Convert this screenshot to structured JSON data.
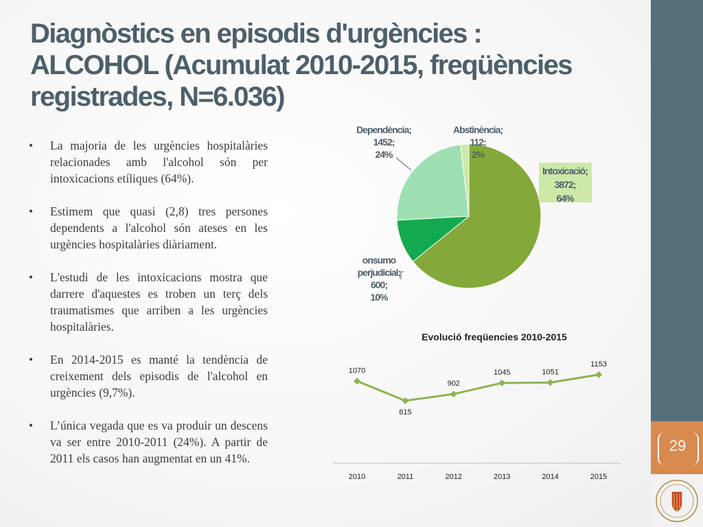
{
  "slide": {
    "title_line1": "Diagnòstics en episodis d'urgències :",
    "title_line2": "ALCOHOL (Acumulat 2010-2015, freqüències",
    "title_line3": "registrades, N=6.036)",
    "page_number": "29",
    "bullet_symbol": "•"
  },
  "bullets": [
    "La majoria de les urgències hospitalàries relacionades amb l'alcohol són per intoxicacions etíliques (64%).",
    "Estimem que quasi (2,8) tres persones dependents a l'alcohol són ateses en les urgències hospitalàries diàriament.",
    "L'estudi de les intoxicacions mostra que darrere d'aquestes es troben un terç dels traumatismes que arriben a les urgències hospitalàries.",
    "En 2014-2015 es manté la tendència de creixement dels episodis de l'alcohol en urgències (9,7%).",
    "L’única vegada que es va produir un descens va ser entre 2010-2011 (24%). A partir de 2011 els casos han augmentat  en un 41%."
  ],
  "chart_data": [
    {
      "type": "pie",
      "title": "",
      "slices": [
        {
          "label": "Intoxicació",
          "value": 3872,
          "percent": "64%",
          "color": "#84a93a"
        },
        {
          "label": "onsumo perjudicial",
          "value": 600,
          "percent": "10%",
          "color": "#13a94f"
        },
        {
          "label": "Dependència",
          "value": 1452,
          "percent": "24%",
          "color": "#9ee0b2"
        },
        {
          "label": "Abstinència",
          "value": 112,
          "percent": "2%",
          "color": "#cde8a8"
        }
      ],
      "label_color": "#4d5f6a"
    },
    {
      "type": "line",
      "title": "Evolució freqüencies 2010-2015",
      "x": [
        "2010",
        "2011",
        "2012",
        "2013",
        "2014",
        "2015"
      ],
      "series": [
        {
          "values": [
            1070,
            815,
            902,
            1045,
            1051,
            1153
          ]
        }
      ],
      "line_color": "#8db34f",
      "xlabel": "",
      "ylabel": ""
    }
  ]
}
